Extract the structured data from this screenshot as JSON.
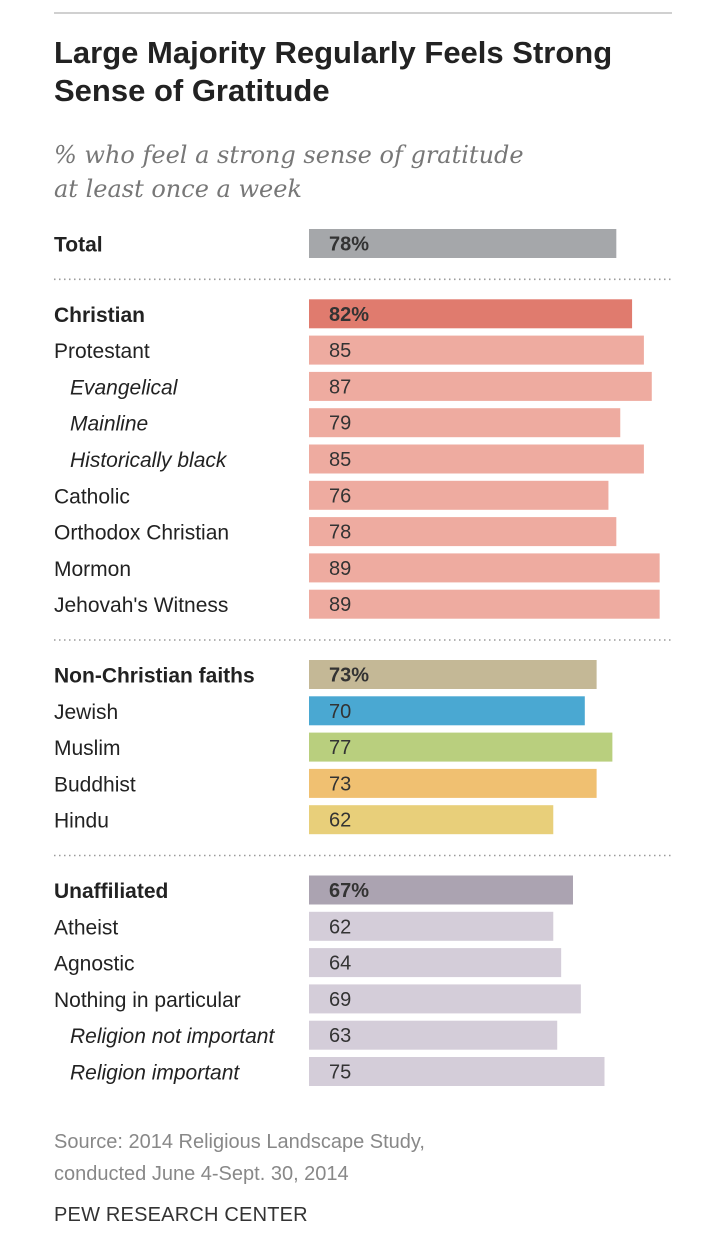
{
  "title": "Large Majority Regularly Feels Strong Sense of Gratitude",
  "subtitle_line1": "% who feel a strong sense of gratitude",
  "subtitle_line2": "at least once a week",
  "source_line1": "Source: 2014 Religious Landscape Study,",
  "source_line2": "conducted June 4-Sept. 30, 2014",
  "org": "PEW RESEARCH CENTER",
  "colors": {
    "total": "#a5a7aa",
    "christian_head": "#e07b6e",
    "christian": "#eeaba0",
    "nonchristian_head": "#c4b896",
    "jewish": "#4aa8d2",
    "muslim": "#b9cf7e",
    "buddhist": "#f0c071",
    "hindu": "#e8cf7a",
    "unaffiliated_head": "#aba3b1",
    "unaffiliated": "#d4cdd9"
  },
  "chart_data": {
    "type": "bar",
    "orientation": "horizontal",
    "title": "Large Majority Regularly Feels Strong Sense of Gratitude",
    "subtitle": "% who feel a strong sense of gratitude at least once a week",
    "xlim": [
      0,
      89
    ],
    "rows": [
      {
        "label": "Total",
        "value": 78,
        "display": "78%",
        "style": "bold",
        "color": "total",
        "group": "total"
      },
      {
        "label": "Christian",
        "value": 82,
        "display": "82%",
        "style": "bold",
        "color": "christian_head",
        "group": "christian"
      },
      {
        "label": "Protestant",
        "value": 85,
        "display": "85",
        "style": "normal",
        "color": "christian",
        "group": "christian"
      },
      {
        "label": "Evangelical",
        "value": 87,
        "display": "87",
        "style": "italic",
        "color": "christian",
        "group": "christian"
      },
      {
        "label": "Mainline",
        "value": 79,
        "display": "79",
        "style": "italic",
        "color": "christian",
        "group": "christian"
      },
      {
        "label": "Historically black",
        "value": 85,
        "display": "85",
        "style": "italic",
        "color": "christian",
        "group": "christian"
      },
      {
        "label": "Catholic",
        "value": 76,
        "display": "76",
        "style": "normal",
        "color": "christian",
        "group": "christian"
      },
      {
        "label": "Orthodox Christian",
        "value": 78,
        "display": "78",
        "style": "normal",
        "color": "christian",
        "group": "christian"
      },
      {
        "label": "Mormon",
        "value": 89,
        "display": "89",
        "style": "normal",
        "color": "christian",
        "group": "christian"
      },
      {
        "label": "Jehovah's Witness",
        "value": 89,
        "display": "89",
        "style": "normal",
        "color": "christian",
        "group": "christian"
      },
      {
        "label": "Non-Christian faiths",
        "value": 73,
        "display": "73%",
        "style": "bold",
        "color": "nonchristian_head",
        "group": "nonchristian"
      },
      {
        "label": "Jewish",
        "value": 70,
        "display": "70",
        "style": "normal",
        "color": "jewish",
        "group": "nonchristian"
      },
      {
        "label": "Muslim",
        "value": 77,
        "display": "77",
        "style": "normal",
        "color": "muslim",
        "group": "nonchristian"
      },
      {
        "label": "Buddhist",
        "value": 73,
        "display": "73",
        "style": "normal",
        "color": "buddhist",
        "group": "nonchristian"
      },
      {
        "label": "Hindu",
        "value": 62,
        "display": "62",
        "style": "normal",
        "color": "hindu",
        "group": "nonchristian"
      },
      {
        "label": "Unaffiliated",
        "value": 67,
        "display": "67%",
        "style": "bold",
        "color": "unaffiliated_head",
        "group": "unaffiliated"
      },
      {
        "label": "Atheist",
        "value": 62,
        "display": "62",
        "style": "normal",
        "color": "unaffiliated",
        "group": "unaffiliated"
      },
      {
        "label": "Agnostic",
        "value": 64,
        "display": "64",
        "style": "normal",
        "color": "unaffiliated",
        "group": "unaffiliated"
      },
      {
        "label": "Nothing in particular",
        "value": 69,
        "display": "69",
        "style": "normal",
        "color": "unaffiliated",
        "group": "unaffiliated"
      },
      {
        "label": "Religion not important",
        "value": 63,
        "display": "63",
        "style": "italic",
        "color": "unaffiliated",
        "group": "unaffiliated"
      },
      {
        "label": "Religion important",
        "value": 75,
        "display": "75",
        "style": "italic",
        "color": "unaffiliated",
        "group": "unaffiliated"
      }
    ]
  }
}
